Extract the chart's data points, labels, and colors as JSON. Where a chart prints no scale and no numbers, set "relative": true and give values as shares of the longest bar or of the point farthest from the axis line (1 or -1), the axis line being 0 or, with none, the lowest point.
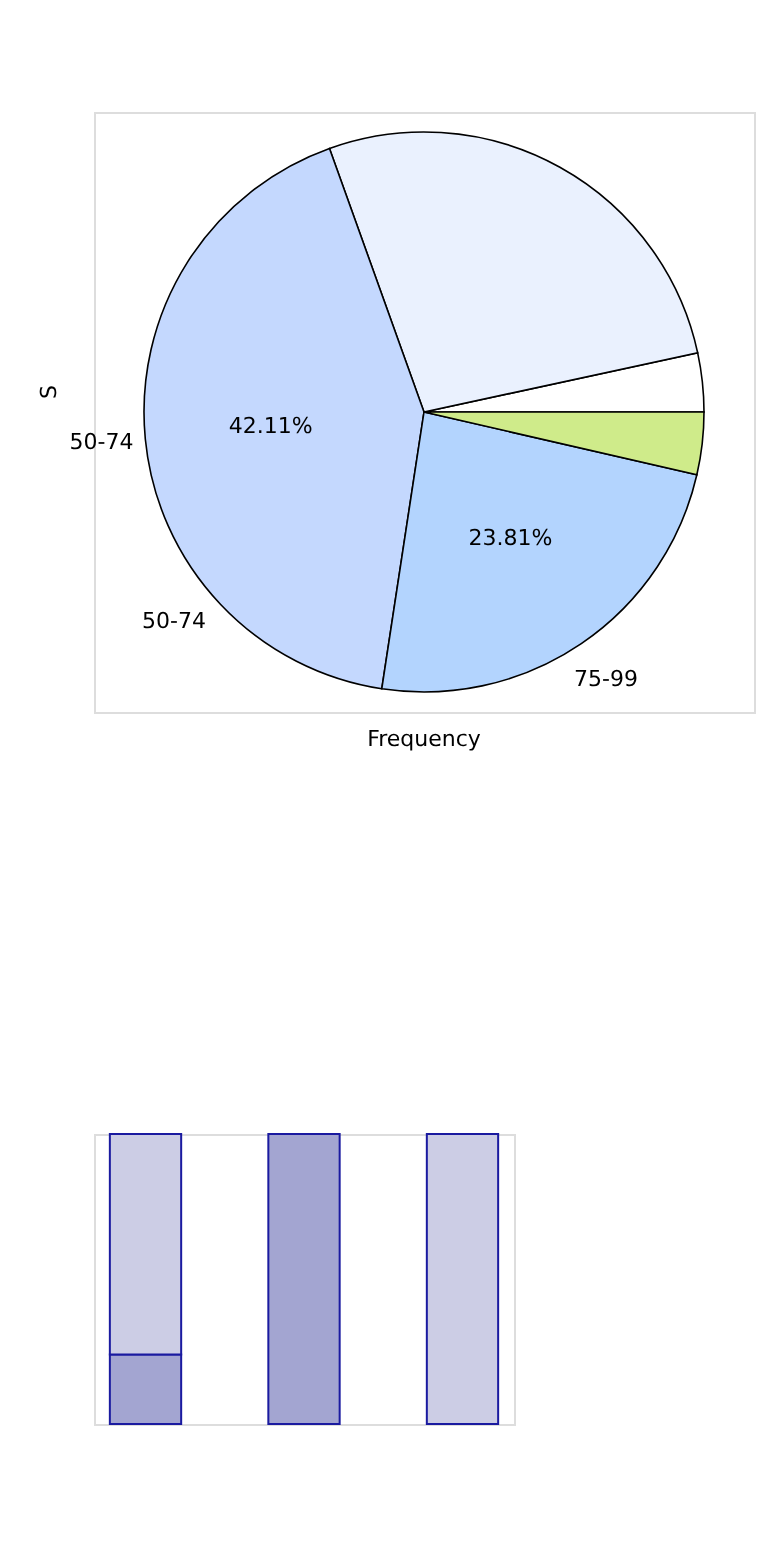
{
  "chart_data": [
    {
      "type": "pie",
      "xlabel": "Frequency",
      "ylabel": "S",
      "categories": [
        null,
        null,
        "50-74",
        "75-99",
        null
      ],
      "values": [
        3.39,
        27.09,
        42.11,
        23.81,
        3.6
      ],
      "value_labels": [
        null,
        null,
        "42.11%",
        "23.81%",
        null
      ],
      "colors": [
        "#ffffff",
        "#eaf1fe",
        "#c4d8fe",
        "#b3d4fe",
        "#cfeb8a"
      ],
      "annotations": [
        "50-74"
      ]
    },
    {
      "type": "bar",
      "stacked": true,
      "relative": true,
      "categories": [
        null,
        null,
        null
      ],
      "series": [
        {
          "color": "#a3a5d1",
          "values": [
            0.24,
            1,
            0
          ]
        },
        {
          "color": "#cccde5",
          "values": [
            0.76,
            0,
            1
          ]
        }
      ]
    }
  ]
}
